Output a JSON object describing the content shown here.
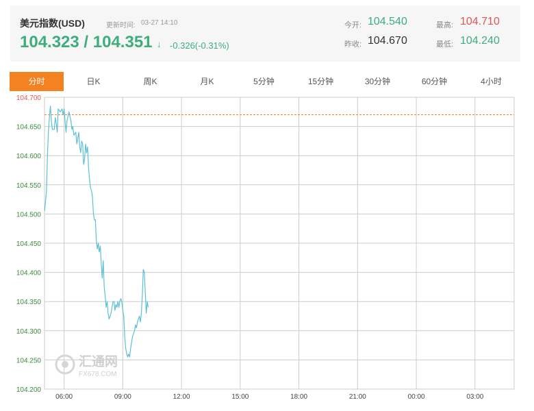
{
  "quote": {
    "name": "美元指数(USD)",
    "update_label": "更新时间:",
    "update_time": "03-27 14:10",
    "price": "104.323 / 104.351",
    "arrow": "↓",
    "change": "-0.326(-0.31%)",
    "open_label": "今开:",
    "open_value": "104.540",
    "prev_close_label": "昨收:",
    "prev_close_value": "104.670",
    "high_label": "最高:",
    "high_value": "104.710",
    "low_label": "最低:",
    "low_value": "104.240"
  },
  "colors": {
    "up": "#e25555",
    "down": "#3cae7c",
    "accent": "#f58220",
    "line": "#5bc0d4",
    "grid": "#cccccc"
  },
  "tabs": [
    {
      "label": "分时",
      "active": true
    },
    {
      "label": "日K",
      "active": false
    },
    {
      "label": "周K",
      "active": false
    },
    {
      "label": "月K",
      "active": false
    },
    {
      "label": "5分钟",
      "active": false
    },
    {
      "label": "15分钟",
      "active": false
    },
    {
      "label": "30分钟",
      "active": false
    },
    {
      "label": "60分钟",
      "active": false
    },
    {
      "label": "4小时",
      "active": false
    }
  ],
  "watermark": {
    "text": "汇通网",
    "sub": "FX678.COM"
  },
  "chart_data": {
    "type": "line",
    "ylim": [
      104.2,
      104.7
    ],
    "ytick_labels": [
      "104.700",
      "104.650",
      "104.600",
      "104.550",
      "104.500",
      "104.450",
      "104.400",
      "104.350",
      "104.300",
      "104.250",
      "104.200"
    ],
    "xtick_labels": [
      "06:00",
      "09:00",
      "12:00",
      "15:00",
      "18:00",
      "21:00",
      "00:00",
      "03:00"
    ],
    "x_start": "05:00",
    "x_end": "05:00 (next day)",
    "reference_line": {
      "value": 104.67,
      "label": "昨收"
    },
    "series": [
      {
        "points": [
          [
            "05:00",
            104.505
          ],
          [
            "05:03",
            104.52
          ],
          [
            "05:06",
            104.54
          ],
          [
            "05:09",
            104.6
          ],
          [
            "05:12",
            104.64
          ],
          [
            "05:15",
            104.665
          ],
          [
            "05:18",
            104.685
          ],
          [
            "05:21",
            104.66
          ],
          [
            "05:24",
            104.645
          ],
          [
            "05:30",
            104.645
          ],
          [
            "05:33",
            104.665
          ],
          [
            "05:36",
            104.655
          ],
          [
            "05:39",
            104.64
          ],
          [
            "05:42",
            104.68
          ],
          [
            "05:48",
            104.675
          ],
          [
            "05:54",
            104.68
          ],
          [
            "05:57",
            104.67
          ],
          [
            "06:00",
            104.68
          ],
          [
            "06:06",
            104.64
          ],
          [
            "06:09",
            104.66
          ],
          [
            "06:15",
            104.675
          ],
          [
            "06:21",
            104.66
          ],
          [
            "06:24",
            104.645
          ],
          [
            "06:27",
            104.65
          ],
          [
            "06:30",
            104.635
          ],
          [
            "06:36",
            104.64
          ],
          [
            "06:39",
            104.62
          ],
          [
            "06:42",
            104.63
          ],
          [
            "06:45",
            104.64
          ],
          [
            "06:48",
            104.615
          ],
          [
            "06:51",
            104.605
          ],
          [
            "06:54",
            104.625
          ],
          [
            "06:57",
            104.62
          ],
          [
            "07:00",
            104.585
          ],
          [
            "07:03",
            104.595
          ],
          [
            "07:06",
            104.62
          ],
          [
            "07:09",
            104.605
          ],
          [
            "07:12",
            104.615
          ],
          [
            "07:15",
            104.58
          ],
          [
            "07:18",
            104.56
          ],
          [
            "07:21",
            104.545
          ],
          [
            "07:24",
            104.54
          ],
          [
            "07:27",
            104.53
          ],
          [
            "07:30",
            104.5
          ],
          [
            "07:33",
            104.49
          ],
          [
            "07:36",
            104.49
          ],
          [
            "07:39",
            104.455
          ],
          [
            "07:42",
            104.44
          ],
          [
            "07:45",
            104.45
          ],
          [
            "07:48",
            104.435
          ],
          [
            "07:51",
            104.445
          ],
          [
            "07:54",
            104.415
          ],
          [
            "07:57",
            104.39
          ],
          [
            "08:00",
            104.42
          ],
          [
            "08:03",
            104.375
          ],
          [
            "08:06",
            104.36
          ],
          [
            "08:09",
            104.34
          ],
          [
            "08:12",
            104.35
          ],
          [
            "08:15",
            104.33
          ],
          [
            "08:18",
            104.32
          ],
          [
            "08:21",
            104.325
          ],
          [
            "08:24",
            104.33
          ],
          [
            "08:27",
            104.34
          ],
          [
            "08:30",
            104.35
          ],
          [
            "08:33",
            104.35
          ],
          [
            "08:36",
            104.335
          ],
          [
            "08:39",
            104.345
          ],
          [
            "08:42",
            104.34
          ],
          [
            "08:45",
            104.35
          ],
          [
            "08:48",
            104.34
          ],
          [
            "08:51",
            104.35
          ],
          [
            "08:54",
            104.355
          ],
          [
            "08:57",
            104.35
          ],
          [
            "09:00",
            104.335
          ],
          [
            "09:03",
            104.325
          ],
          [
            "09:06",
            104.29
          ],
          [
            "09:09",
            104.27
          ],
          [
            "09:12",
            104.26
          ],
          [
            "09:15",
            104.255
          ],
          [
            "09:18",
            104.26
          ],
          [
            "09:21",
            104.255
          ],
          [
            "09:24",
            104.27
          ],
          [
            "09:27",
            104.28
          ],
          [
            "09:30",
            104.29
          ],
          [
            "09:33",
            104.295
          ],
          [
            "09:36",
            104.3
          ],
          [
            "09:39",
            104.31
          ],
          [
            "09:42",
            104.305
          ],
          [
            "09:45",
            104.315
          ],
          [
            "09:48",
            104.32
          ],
          [
            "09:51",
            104.325
          ],
          [
            "09:54",
            104.315
          ],
          [
            "09:57",
            104.33
          ],
          [
            "10:00",
            104.36
          ],
          [
            "10:03",
            104.405
          ],
          [
            "10:06",
            104.4
          ],
          [
            "10:09",
            104.365
          ],
          [
            "10:12",
            104.33
          ],
          [
            "10:15",
            104.35
          ],
          [
            "10:18",
            104.34
          ]
        ]
      }
    ]
  }
}
